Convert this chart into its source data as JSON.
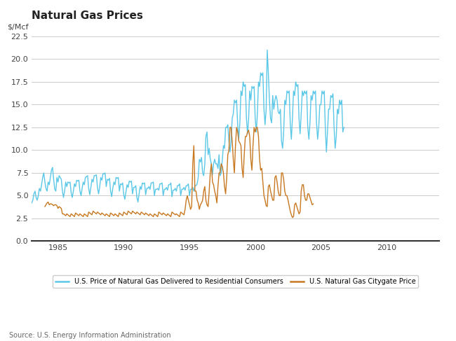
{
  "title": "Natural Gas Prices",
  "ylabel": "$/Mcf",
  "source": "Source: U.S. Energy Information Administration",
  "legend_residential": "U.S. Price of Natural Gas Delivered to Residential Consumers",
  "legend_citygate": "U.S. Natural Gas Citygate Price",
  "residential_color": "#5bc8e8",
  "citygate_color": "#c87820",
  "background_color": "#ffffff",
  "grid_color": "#cccccc",
  "ylim": [
    0,
    22.5
  ],
  "yticks": [
    0.0,
    2.5,
    5.0,
    7.5,
    10.0,
    12.5,
    15.0,
    17.5,
    20.0,
    22.5
  ],
  "xlim_start": 1983.0,
  "xlim_end": 2014.0,
  "xticks": [
    1985,
    1990,
    1995,
    2000,
    2005,
    2010
  ],
  "res_start_year": 1983.0,
  "city_start_year": 1984.0,
  "residential_y": [
    4.2,
    4.5,
    5.2,
    5.5,
    4.8,
    4.5,
    5.0,
    5.8,
    5.5,
    6.2,
    7.0,
    7.5,
    6.5,
    5.8,
    5.5,
    6.5,
    6.2,
    7.0,
    7.8,
    8.1,
    6.8,
    5.7,
    5.5,
    7.0,
    6.5,
    7.2,
    7.0,
    6.8,
    5.5,
    4.8,
    5.5,
    6.5,
    6.0,
    6.5,
    6.4,
    6.5,
    5.3,
    4.8,
    5.5,
    6.3,
    6.0,
    6.7,
    6.6,
    6.7,
    5.5,
    5.0,
    5.8,
    6.5,
    6.2,
    7.0,
    7.1,
    7.2,
    5.8,
    5.1,
    5.9,
    6.8,
    6.5,
    7.2,
    7.2,
    7.3,
    5.9,
    5.2,
    5.9,
    7.0,
    6.7,
    7.4,
    7.4,
    7.5,
    6.0,
    6.8,
    6.7,
    6.9,
    5.5,
    4.9,
    5.8,
    6.5,
    6.2,
    7.0,
    6.9,
    7.0,
    5.5,
    6.3,
    6.2,
    6.4,
    5.1,
    4.6,
    5.4,
    6.2,
    5.9,
    6.6,
    6.5,
    6.6,
    5.2,
    5.9,
    5.9,
    6.1,
    4.8,
    4.3,
    5.2,
    6.0,
    5.7,
    6.4,
    6.3,
    6.4,
    5.1,
    5.8,
    5.8,
    6.0,
    5.7,
    6.4,
    6.4,
    6.5,
    5.0,
    5.7,
    5.7,
    5.8,
    5.6,
    6.3,
    6.3,
    6.4,
    5.0,
    5.7,
    5.7,
    5.9,
    5.6,
    6.2,
    6.2,
    6.4,
    4.9,
    5.6,
    5.6,
    5.8,
    5.5,
    6.1,
    6.1,
    6.3,
    5.0,
    5.7,
    5.7,
    5.9,
    5.6,
    6.1,
    6.1,
    6.3,
    5.0,
    5.7,
    5.7,
    5.9,
    5.5,
    6.1,
    6.1,
    6.3,
    7.0,
    9.0,
    8.7,
    9.2,
    7.5,
    7.2,
    8.5,
    11.5,
    12.0,
    9.5,
    10.2,
    9.0,
    8.5,
    7.3,
    8.5,
    9.0,
    8.5,
    8.5,
    8.0,
    9.5,
    7.2,
    7.5,
    9.0,
    10.5,
    10.2,
    12.5,
    12.5,
    12.8,
    11.0,
    9.8,
    11.0,
    13.5,
    14.0,
    15.5,
    15.2,
    15.5,
    12.8,
    11.2,
    13.0,
    16.5,
    16.0,
    17.5,
    17.0,
    17.2,
    13.5,
    11.8,
    13.5,
    16.5,
    15.5,
    17.0,
    16.8,
    17.0,
    13.5,
    12.0,
    14.0,
    17.5,
    17.0,
    18.5,
    18.2,
    18.5,
    14.5,
    12.8,
    14.5,
    21.0,
    18.5,
    15.5,
    13.5,
    13.0,
    16.0,
    14.5,
    15.5,
    16.0,
    15.5,
    14.2,
    14.0,
    14.5,
    11.0,
    10.2,
    12.0,
    15.5,
    15.0,
    16.5,
    16.3,
    16.5,
    13.0,
    11.2,
    13.5,
    16.5,
    16.0,
    17.5,
    17.0,
    17.2,
    13.5,
    11.8,
    14.0,
    16.5,
    16.0,
    16.5,
    16.2,
    16.5,
    12.5,
    11.2,
    13.0,
    16.0,
    15.5,
    16.5,
    16.2,
    16.5,
    13.0,
    11.2,
    12.5,
    15.0,
    15.0,
    16.5,
    16.2,
    16.5,
    12.5,
    9.8,
    12.0,
    14.5,
    14.5,
    16.0,
    15.8,
    16.2,
    12.5,
    10.2,
    11.5,
    14.5,
    14.0,
    15.5,
    15.0,
    15.5,
    12.0,
    12.5
  ],
  "citygate_y": [
    3.8,
    4.0,
    4.2,
    4.3,
    4.0,
    4.1,
    4.1,
    4.0,
    3.9,
    4.0,
    4.0,
    3.9,
    3.6,
    3.8,
    3.7,
    3.6,
    3.0,
    3.0,
    2.9,
    2.8,
    3.0,
    2.9,
    2.8,
    2.7,
    3.0,
    2.9,
    2.8,
    2.7,
    3.1,
    3.0,
    2.9,
    2.8,
    3.0,
    2.9,
    2.8,
    2.7,
    3.0,
    2.9,
    2.8,
    2.7,
    3.2,
    3.1,
    3.0,
    2.9,
    3.3,
    3.2,
    3.1,
    3.0,
    3.2,
    3.1,
    3.0,
    2.9,
    3.1,
    3.0,
    2.9,
    2.8,
    3.0,
    2.9,
    2.8,
    2.7,
    3.1,
    3.0,
    2.9,
    2.8,
    3.0,
    2.9,
    2.8,
    2.7,
    3.1,
    3.0,
    2.9,
    2.8,
    3.2,
    3.1,
    3.0,
    2.9,
    3.3,
    3.2,
    3.1,
    3.0,
    3.3,
    3.2,
    3.1,
    3.0,
    3.2,
    3.1,
    3.0,
    2.9,
    3.2,
    3.1,
    3.0,
    2.9,
    3.1,
    3.0,
    2.9,
    2.8,
    3.0,
    2.9,
    2.8,
    2.7,
    3.0,
    2.9,
    2.8,
    2.7,
    3.2,
    3.1,
    3.0,
    2.9,
    3.1,
    3.0,
    2.9,
    2.8,
    3.0,
    2.9,
    2.8,
    2.7,
    3.2,
    3.1,
    3.0,
    2.9,
    3.0,
    2.9,
    2.8,
    2.7,
    3.2,
    3.1,
    3.0,
    2.9,
    3.5,
    4.5,
    5.0,
    4.5,
    4.0,
    3.5,
    3.8,
    8.5,
    10.5,
    5.5,
    5.5,
    4.5,
    4.2,
    3.5,
    4.0,
    4.2,
    4.5,
    5.5,
    6.0,
    4.5,
    4.0,
    3.8,
    5.5,
    7.5,
    8.5,
    6.5,
    6.2,
    5.5,
    5.0,
    4.2,
    6.0,
    7.5,
    7.5,
    8.5,
    8.2,
    7.5,
    6.0,
    5.2,
    7.0,
    9.5,
    10.0,
    12.5,
    12.5,
    11.0,
    9.0,
    7.5,
    10.5,
    12.5,
    12.0,
    11.0,
    10.8,
    10.5,
    8.0,
    7.0,
    9.5,
    11.5,
    11.5,
    12.0,
    12.2,
    11.5,
    9.0,
    7.8,
    10.5,
    12.5,
    12.0,
    12.5,
    12.5,
    11.5,
    9.0,
    7.8,
    8.0,
    6.5,
    5.0,
    4.5,
    3.9,
    3.8,
    6.0,
    6.2,
    5.5,
    5.0,
    4.5,
    4.5,
    7.0,
    7.2,
    6.5,
    5.5,
    5.0,
    5.0,
    7.5,
    7.5,
    6.8,
    5.5,
    5.0,
    5.0,
    4.5,
    3.9,
    3.3,
    2.9,
    2.6,
    2.7,
    4.0,
    4.2,
    3.8,
    3.4,
    3.0,
    3.2,
    5.5,
    6.2,
    6.2,
    5.0,
    4.5,
    4.5,
    5.2,
    5.2,
    4.8,
    4.4,
    4.0,
    4.1
  ]
}
